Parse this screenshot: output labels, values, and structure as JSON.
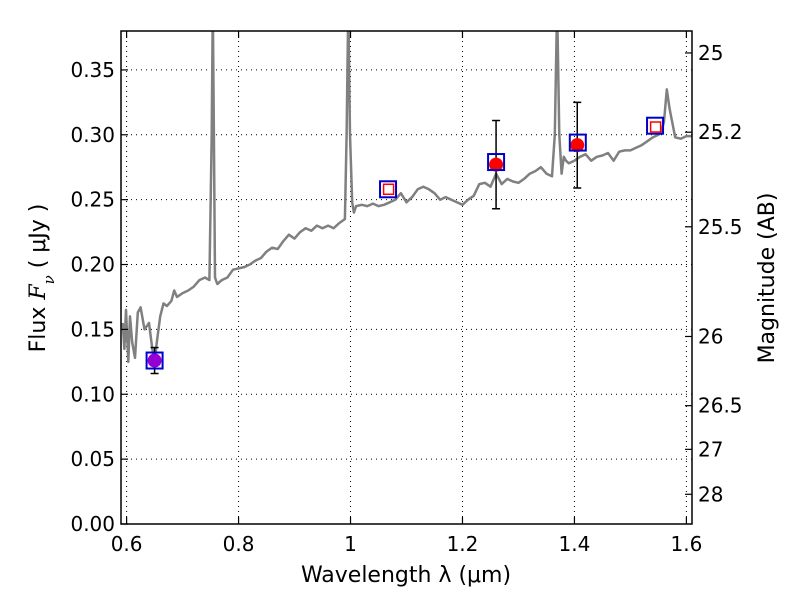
{
  "chart_data": {
    "type": "scatter",
    "title": "",
    "xlabel": "Wavelength  λ (μm)",
    "ylabel": "Flux  Fν  ( μJy )",
    "ylabel_parts": {
      "prefix": "Flux  ",
      "symbol": "F",
      "subscript": "ν",
      "suffix": "  ( μJy )"
    },
    "y2label": "Magnitude (AB)",
    "xlim": [
      0.59,
      1.61
    ],
    "ylim": [
      0.0,
      0.38
    ],
    "grid": true,
    "x_ticks": [
      {
        "value": 0.6,
        "label": "0.6"
      },
      {
        "value": 0.8,
        "label": "0.8"
      },
      {
        "value": 1.0,
        "label": "1"
      },
      {
        "value": 1.2,
        "label": "1.2"
      },
      {
        "value": 1.4,
        "label": "1.4"
      },
      {
        "value": 1.6,
        "label": "1.6"
      }
    ],
    "y_ticks": [
      {
        "value": 0.0,
        "label": "0.00"
      },
      {
        "value": 0.05,
        "label": "0.05"
      },
      {
        "value": 0.1,
        "label": "0.10"
      },
      {
        "value": 0.15,
        "label": "0.15"
      },
      {
        "value": 0.2,
        "label": "0.20"
      },
      {
        "value": 0.25,
        "label": "0.25"
      },
      {
        "value": 0.3,
        "label": "0.30"
      },
      {
        "value": 0.35,
        "label": "0.35"
      }
    ],
    "y2_ticks": [
      {
        "value": 25.0,
        "label": "25"
      },
      {
        "value": 25.2,
        "label": "25.2"
      },
      {
        "value": 25.5,
        "label": "25.5"
      },
      {
        "value": 26.0,
        "label": "26"
      },
      {
        "value": 26.5,
        "label": "26.5"
      },
      {
        "value": 27.0,
        "label": "27"
      },
      {
        "value": 28.0,
        "label": "28"
      }
    ],
    "series": [
      {
        "kind": "line",
        "color": "#808080",
        "x": [
          0.593,
          0.596,
          0.599,
          0.603,
          0.606,
          0.61,
          0.615,
          0.62,
          0.625,
          0.632,
          0.64,
          0.646,
          0.65,
          0.654,
          0.66,
          0.666,
          0.672,
          0.68,
          0.685,
          0.69,
          0.7,
          0.71,
          0.72,
          0.73,
          0.74,
          0.748,
          0.752,
          0.754,
          0.756,
          0.758,
          0.762,
          0.77,
          0.78,
          0.79,
          0.8,
          0.81,
          0.82,
          0.83,
          0.84,
          0.85,
          0.86,
          0.87,
          0.88,
          0.89,
          0.9,
          0.91,
          0.92,
          0.93,
          0.94,
          0.95,
          0.96,
          0.97,
          0.98,
          0.99,
          0.993,
          0.996,
          0.999,
          1.003,
          1.006,
          1.01,
          1.02,
          1.03,
          1.04,
          1.05,
          1.06,
          1.07,
          1.08,
          1.09,
          1.1,
          1.11,
          1.12,
          1.13,
          1.14,
          1.15,
          1.16,
          1.17,
          1.18,
          1.19,
          1.2,
          1.21,
          1.22,
          1.23,
          1.24,
          1.25,
          1.26,
          1.27,
          1.28,
          1.29,
          1.3,
          1.31,
          1.32,
          1.33,
          1.34,
          1.35,
          1.36,
          1.365,
          1.369,
          1.373,
          1.377,
          1.381,
          1.385,
          1.39,
          1.4,
          1.41,
          1.42,
          1.43,
          1.44,
          1.45,
          1.46,
          1.47,
          1.48,
          1.49,
          1.5,
          1.51,
          1.52,
          1.53,
          1.54,
          1.55,
          1.555,
          1.56,
          1.565,
          1.57,
          1.58,
          1.59,
          1.6,
          1.61
        ],
        "y": [
          0.155,
          0.135,
          0.165,
          0.125,
          0.16,
          0.14,
          0.128,
          0.163,
          0.167,
          0.15,
          0.155,
          0.135,
          0.125,
          0.14,
          0.16,
          0.17,
          0.168,
          0.172,
          0.18,
          0.175,
          0.178,
          0.18,
          0.183,
          0.188,
          0.19,
          0.188,
          0.3,
          0.4,
          0.3,
          0.19,
          0.185,
          0.188,
          0.19,
          0.196,
          0.197,
          0.198,
          0.2,
          0.203,
          0.205,
          0.21,
          0.213,
          0.212,
          0.218,
          0.223,
          0.22,
          0.225,
          0.228,
          0.226,
          0.23,
          0.228,
          0.23,
          0.228,
          0.232,
          0.235,
          0.3,
          0.4,
          0.3,
          0.248,
          0.24,
          0.245,
          0.246,
          0.245,
          0.247,
          0.245,
          0.246,
          0.248,
          0.25,
          0.255,
          0.248,
          0.252,
          0.258,
          0.26,
          0.258,
          0.255,
          0.25,
          0.252,
          0.25,
          0.248,
          0.246,
          0.25,
          0.253,
          0.262,
          0.263,
          0.26,
          0.27,
          0.262,
          0.266,
          0.264,
          0.263,
          0.266,
          0.27,
          0.272,
          0.275,
          0.27,
          0.268,
          0.3,
          0.4,
          0.3,
          0.27,
          0.283,
          0.28,
          0.278,
          0.28,
          0.283,
          0.285,
          0.28,
          0.283,
          0.284,
          0.286,
          0.28,
          0.287,
          0.288,
          0.288,
          0.29,
          0.292,
          0.295,
          0.298,
          0.3,
          0.302,
          0.31,
          0.335,
          0.32,
          0.298,
          0.297,
          0.299,
          0.299
        ]
      },
      {
        "kind": "points",
        "name": "",
        "x": [
          0.65,
          1.26,
          1.405
        ],
        "y": [
          0.126,
          0.277,
          0.292
        ],
        "yerr": [
          0.01,
          0.034,
          0.033
        ],
        "colors": [
          "#9400d3",
          "#ff0000",
          "#ff0000"
        ]
      },
      {
        "kind": "open-squares",
        "name": "",
        "x": [
          0.65,
          1.067,
          1.26,
          1.406,
          1.544
        ],
        "y": [
          0.126,
          0.258,
          0.279,
          0.294,
          0.307
        ],
        "color": "#0000cc"
      },
      {
        "kind": "open-squares-small",
        "name": "",
        "x": [
          1.068,
          1.545
        ],
        "y": [
          0.258,
          0.306
        ],
        "color": "#ff0000"
      }
    ]
  }
}
